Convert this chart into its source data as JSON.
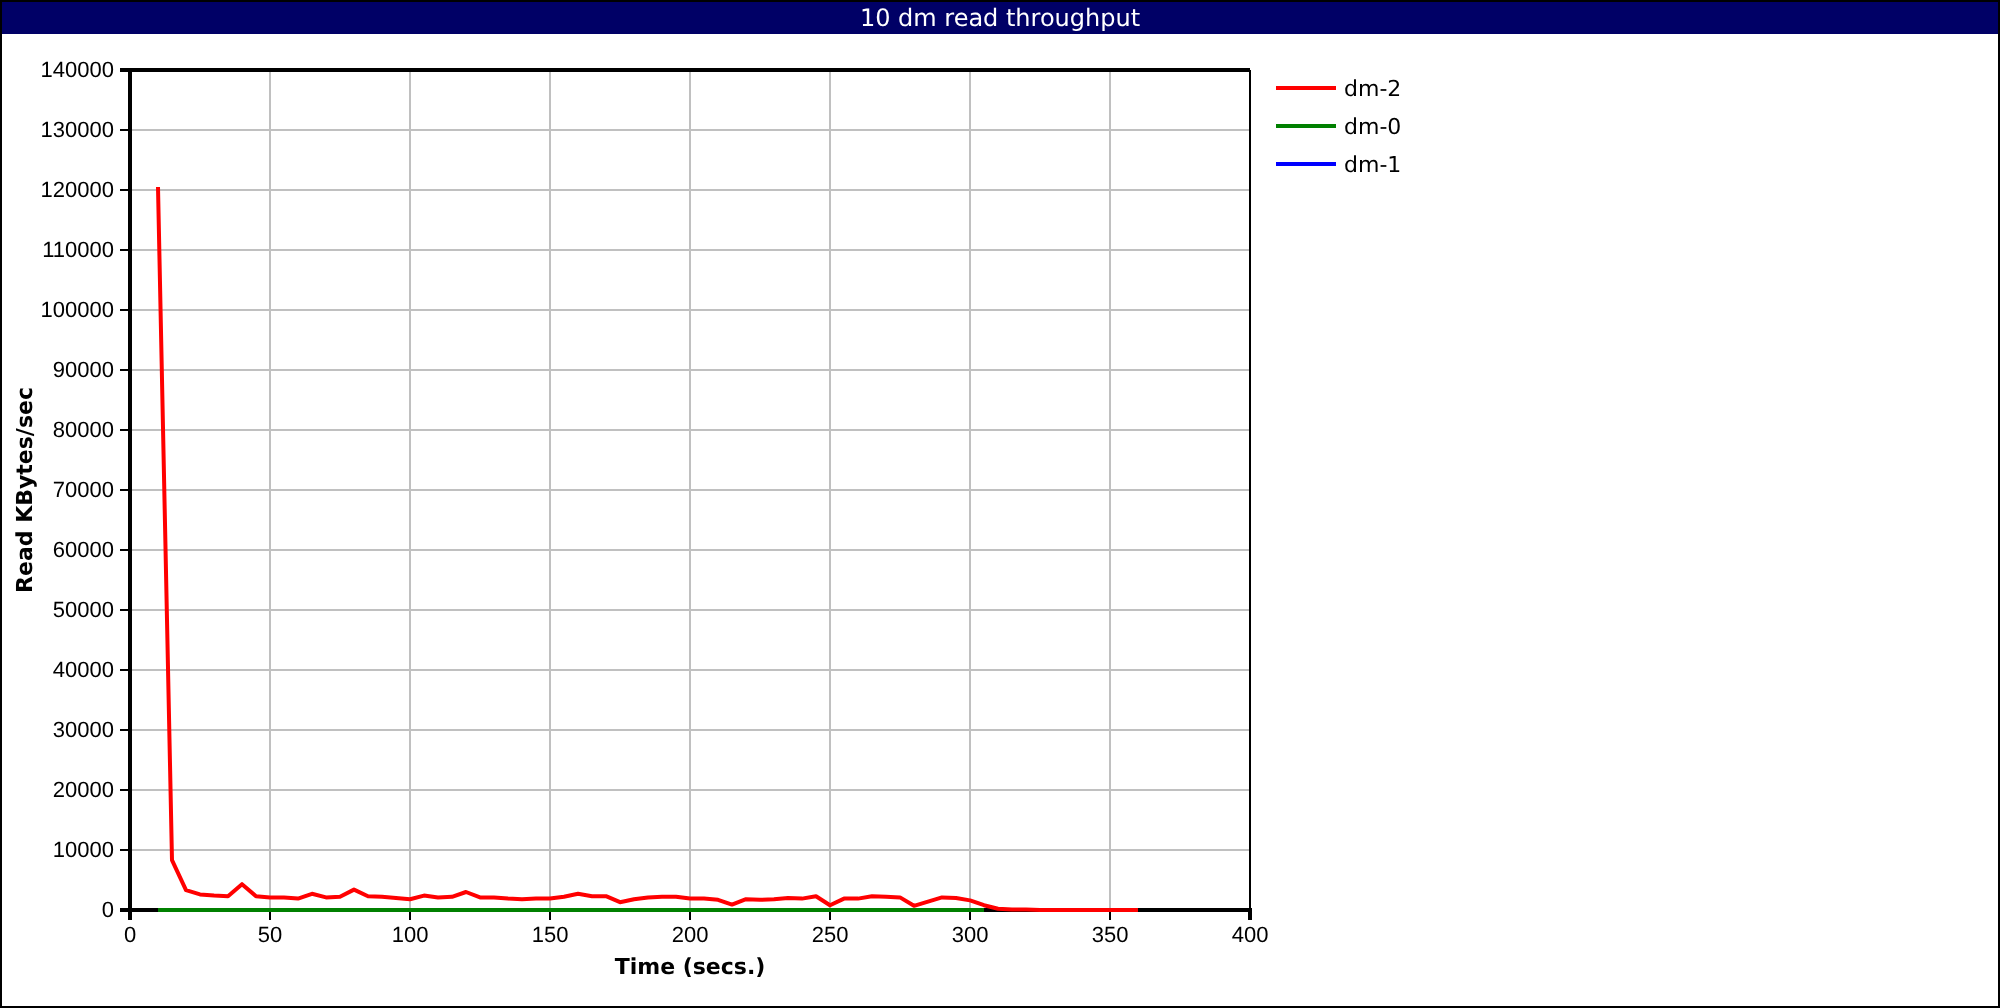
{
  "chart_data": {
    "type": "line",
    "title": "10 dm read throughput",
    "xlabel": "Time (secs.)",
    "ylabel": "Read KBytes/sec",
    "x": [
      10,
      15,
      20,
      25,
      30,
      35,
      40,
      45,
      50,
      55,
      60,
      65,
      70,
      75,
      80,
      85,
      90,
      95,
      100,
      105,
      110,
      115,
      120,
      125,
      130,
      135,
      140,
      145,
      150,
      155,
      160,
      165,
      170,
      175,
      180,
      185,
      190,
      195,
      200,
      205,
      210,
      215,
      220,
      225,
      230,
      235,
      240,
      245,
      250,
      255,
      260,
      265,
      270,
      275,
      280,
      285,
      290,
      295,
      300,
      305,
      310,
      315,
      320,
      325,
      330,
      335,
      340,
      345,
      350,
      355,
      360
    ],
    "series": [
      {
        "name": "dm-2",
        "color": "#ff0000",
        "values": [
          120500,
          8300,
          3300,
          2600,
          2400,
          2300,
          4300,
          2300,
          2100,
          2100,
          1900,
          2700,
          2100,
          2200,
          3400,
          2300,
          2200,
          2000,
          1800,
          2400,
          2100,
          2200,
          3000,
          2100,
          2100,
          1900,
          1800,
          1900,
          1900,
          2200,
          2700,
          2300,
          2300,
          1300,
          1800,
          2100,
          2200,
          2200,
          1900,
          1900,
          1700,
          900,
          1800,
          1700,
          1800,
          2000,
          1900,
          2300,
          800,
          1900,
          1900,
          2300,
          2200,
          2100,
          700,
          1400,
          2100,
          2000,
          1600,
          800,
          200,
          100,
          100,
          0,
          0,
          0,
          0,
          0,
          0,
          0,
          0
        ]
      },
      {
        "name": "dm-0",
        "color": "#008000",
        "values": [
          0,
          0,
          0,
          0,
          0,
          0,
          0,
          0,
          0,
          0,
          0,
          0,
          0,
          0,
          0,
          0,
          0,
          0,
          0,
          0,
          0,
          0,
          0,
          0,
          0,
          0,
          0,
          0,
          0,
          0,
          0,
          0,
          0,
          0,
          0,
          0,
          0,
          0,
          0,
          0,
          0,
          0,
          0,
          0,
          0,
          0,
          0,
          0,
          0,
          0,
          0,
          0,
          0,
          0,
          0,
          0,
          0,
          0,
          0,
          0,
          null,
          null,
          null,
          null,
          null,
          null,
          null,
          null,
          null,
          null,
          null
        ]
      },
      {
        "name": "dm-1",
        "color": "#0000ff",
        "values": [
          null,
          null,
          null,
          null,
          null,
          null,
          null,
          null,
          null,
          null,
          null,
          null,
          null,
          null,
          null,
          null,
          null,
          null,
          null,
          null,
          null,
          null,
          null,
          null,
          null,
          null,
          null,
          null,
          null,
          null,
          null,
          null,
          null,
          null,
          null,
          null,
          null,
          null,
          null,
          null,
          null,
          null,
          null,
          null,
          null,
          null,
          null,
          null,
          null,
          null,
          null,
          null,
          null,
          null,
          null,
          null,
          null,
          null,
          null,
          null,
          null,
          null,
          null,
          null,
          null,
          null,
          null,
          null,
          null,
          null,
          null
        ]
      }
    ],
    "xlim": [
      0,
      400
    ],
    "xticks": [
      0,
      50,
      100,
      150,
      200,
      250,
      300,
      350,
      400
    ],
    "ylim": [
      0,
      140000
    ],
    "yticks": [
      0,
      10000,
      20000,
      30000,
      40000,
      50000,
      60000,
      70000,
      80000,
      90000,
      100000,
      110000,
      120000,
      130000,
      140000
    ],
    "grid": true,
    "legend": "right",
    "marker": "none",
    "line_style": "solid"
  }
}
